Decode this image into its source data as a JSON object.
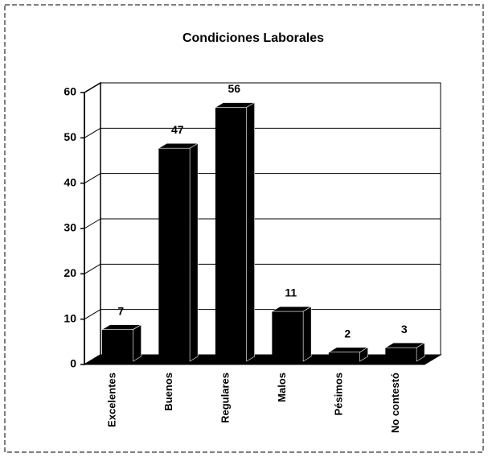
{
  "chart_data": {
    "type": "bar",
    "title": "Condiciones Laborales",
    "categories": [
      "Excelentes",
      "Buenos",
      "Regulares",
      "Malos",
      "Pésimos",
      "No contestó"
    ],
    "values": [
      7,
      47,
      56,
      11,
      2,
      3
    ],
    "color": "#000000",
    "ylim": [
      0,
      60
    ],
    "yticks": [
      0,
      10,
      20,
      30,
      40,
      50,
      60
    ],
    "grid": true
  }
}
